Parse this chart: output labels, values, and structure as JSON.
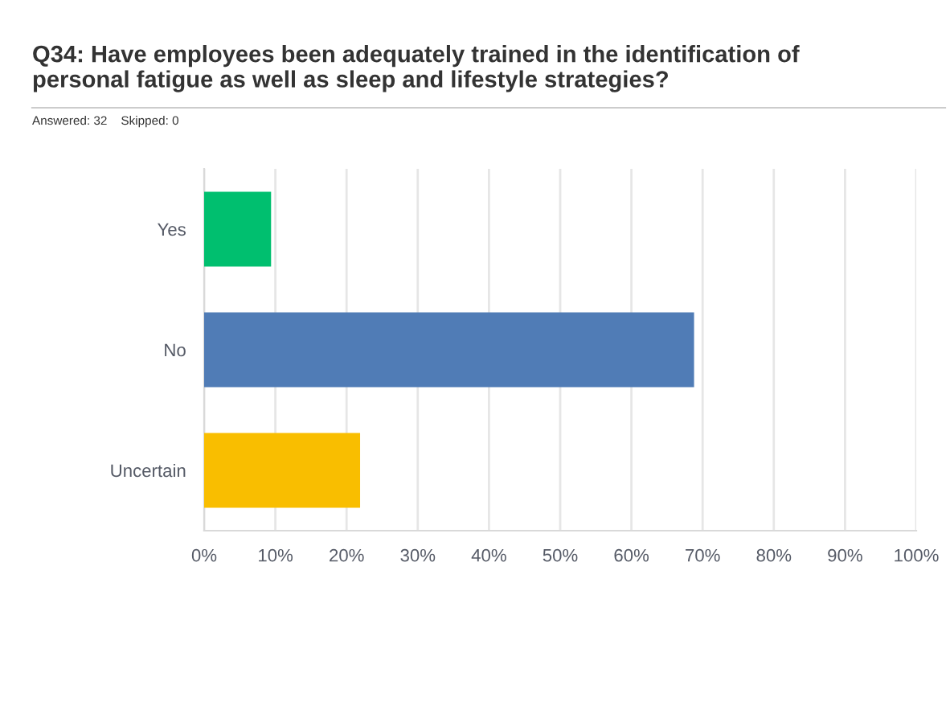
{
  "chart_data": {
    "type": "bar",
    "orientation": "horizontal",
    "title": "Q34: Have employees been adequately trained in the identification of\npersonal fatigue as well as sleep and lifestyle strategies?",
    "subtitle": "Answered: 32    Skipped: 0",
    "categories": [
      "Yes",
      "No",
      "Uncertain"
    ],
    "values": [
      9.4,
      68.8,
      21.9
    ],
    "colors": [
      "#00bf6f",
      "#507cb6",
      "#f9be00"
    ],
    "xlim": [
      0,
      100
    ],
    "xticks": [
      {
        "value": 0,
        "label": "0%"
      },
      {
        "value": 10,
        "label": "10%"
      },
      {
        "value": 20,
        "label": "20%"
      },
      {
        "value": 30,
        "label": "30%"
      },
      {
        "value": 40,
        "label": "40%"
      },
      {
        "value": 50,
        "label": "50%"
      },
      {
        "value": 60,
        "label": "60%"
      },
      {
        "value": 70,
        "label": "70%"
      },
      {
        "value": 80,
        "label": "80%"
      },
      {
        "value": 90,
        "label": "90%"
      },
      {
        "value": 100,
        "label": "100%"
      }
    ],
    "grid": "x",
    "legend": false
  }
}
